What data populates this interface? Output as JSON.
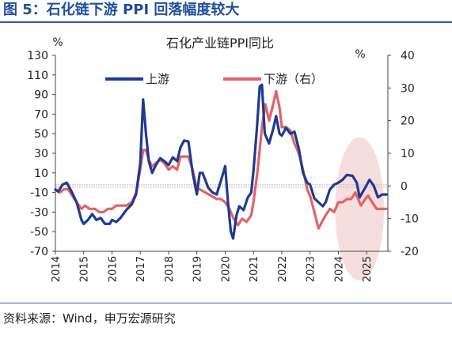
{
  "figure": {
    "title": "图 5：石化链下游 PPI 回落幅度较大",
    "source": "资料来源：Wind，申万宏源研究"
  },
  "colors": {
    "upstream": "#1f3a93",
    "downstream": "#e06468",
    "highlight": "#f7dede",
    "zero_line": "#bdbdbd"
  },
  "chart_data": {
    "type": "line",
    "title": "石化产业链PPI同比",
    "left_unit": "%",
    "right_unit": "%",
    "y_left": {
      "min": -70,
      "max": 130,
      "ticks": [
        130,
        110,
        90,
        70,
        50,
        30,
        10,
        -10,
        -30,
        -50,
        -70
      ]
    },
    "y_right": {
      "min": -20,
      "max": 40,
      "ticks": [
        40,
        30,
        20,
        10,
        0,
        -10,
        -20
      ]
    },
    "x_ticks": [
      "2014",
      "2015",
      "2016",
      "2017",
      "2018",
      "2019",
      "2020",
      "2021",
      "2022",
      "2023",
      "2024",
      "2025"
    ],
    "x_range": [
      2014.0,
      2025.75
    ],
    "highlight_period": [
      2024.0,
      2025.5
    ],
    "series": [
      {
        "name": "上游",
        "axis": "left",
        "points": [
          [
            2014.0,
            -7
          ],
          [
            2014.1,
            -9
          ],
          [
            2014.25,
            -2
          ],
          [
            2014.4,
            0
          ],
          [
            2014.55,
            -8
          ],
          [
            2014.75,
            -20
          ],
          [
            2014.92,
            -38
          ],
          [
            2015.0,
            -42
          ],
          [
            2015.15,
            -38
          ],
          [
            2015.3,
            -32
          ],
          [
            2015.45,
            -38
          ],
          [
            2015.6,
            -36
          ],
          [
            2015.75,
            -42
          ],
          [
            2015.92,
            -42
          ],
          [
            2016.0,
            -38
          ],
          [
            2016.15,
            -40
          ],
          [
            2016.3,
            -36
          ],
          [
            2016.5,
            -28
          ],
          [
            2016.7,
            -22
          ],
          [
            2016.85,
            -12
          ],
          [
            2017.0,
            20
          ],
          [
            2017.1,
            85
          ],
          [
            2017.2,
            50
          ],
          [
            2017.3,
            22
          ],
          [
            2017.42,
            10
          ],
          [
            2017.55,
            18
          ],
          [
            2017.7,
            25
          ],
          [
            2017.85,
            22
          ],
          [
            2018.0,
            18
          ],
          [
            2018.15,
            26
          ],
          [
            2018.3,
            22
          ],
          [
            2018.42,
            36
          ],
          [
            2018.55,
            43
          ],
          [
            2018.7,
            42
          ],
          [
            2018.85,
            10
          ],
          [
            2019.0,
            -12
          ],
          [
            2019.1,
            10
          ],
          [
            2019.2,
            10
          ],
          [
            2019.4,
            -5
          ],
          [
            2019.55,
            -10
          ],
          [
            2019.7,
            -12
          ],
          [
            2019.85,
            2
          ],
          [
            2020.0,
            17
          ],
          [
            2020.1,
            -20
          ],
          [
            2020.2,
            -50
          ],
          [
            2020.28,
            -57
          ],
          [
            2020.4,
            -33
          ],
          [
            2020.5,
            -24
          ],
          [
            2020.65,
            -28
          ],
          [
            2020.8,
            -15
          ],
          [
            2020.92,
            -10
          ],
          [
            2021.0,
            12
          ],
          [
            2021.12,
            55
          ],
          [
            2021.22,
            98
          ],
          [
            2021.3,
            100
          ],
          [
            2021.4,
            50
          ],
          [
            2021.55,
            40
          ],
          [
            2021.7,
            55
          ],
          [
            2021.8,
            68
          ],
          [
            2021.92,
            50
          ],
          [
            2022.0,
            48
          ],
          [
            2022.15,
            56
          ],
          [
            2022.3,
            50
          ],
          [
            2022.45,
            52
          ],
          [
            2022.6,
            35
          ],
          [
            2022.75,
            10
          ],
          [
            2022.9,
            0
          ],
          [
            2023.0,
            -2
          ],
          [
            2023.15,
            -16
          ],
          [
            2023.3,
            -20
          ],
          [
            2023.45,
            -24
          ],
          [
            2023.55,
            -20
          ],
          [
            2023.7,
            -7
          ],
          [
            2023.85,
            -2
          ],
          [
            2024.0,
            0
          ],
          [
            2024.15,
            3
          ],
          [
            2024.3,
            8
          ],
          [
            2024.5,
            7
          ],
          [
            2024.65,
            0
          ],
          [
            2024.75,
            -15
          ],
          [
            2024.85,
            -10
          ],
          [
            2024.95,
            -5
          ],
          [
            2025.1,
            3
          ],
          [
            2025.25,
            -3
          ],
          [
            2025.4,
            -15
          ],
          [
            2025.55,
            -12
          ],
          [
            2025.7,
            -12
          ]
        ]
      },
      {
        "name": "下游（右）",
        "axis": "right",
        "points": [
          [
            2014.0,
            -1
          ],
          [
            2014.15,
            -2
          ],
          [
            2014.3,
            -1
          ],
          [
            2014.45,
            -1
          ],
          [
            2014.6,
            -3
          ],
          [
            2014.75,
            -5
          ],
          [
            2014.92,
            -7
          ],
          [
            2015.05,
            -6
          ],
          [
            2015.2,
            -7
          ],
          [
            2015.4,
            -7
          ],
          [
            2015.55,
            -8
          ],
          [
            2015.7,
            -8
          ],
          [
            2015.85,
            -7
          ],
          [
            2016.0,
            -7
          ],
          [
            2016.15,
            -6
          ],
          [
            2016.3,
            -6
          ],
          [
            2016.5,
            -6
          ],
          [
            2016.7,
            -5
          ],
          [
            2016.85,
            -2
          ],
          [
            2017.0,
            5
          ],
          [
            2017.1,
            11
          ],
          [
            2017.2,
            11
          ],
          [
            2017.3,
            8
          ],
          [
            2017.42,
            6
          ],
          [
            2017.55,
            7
          ],
          [
            2017.7,
            8
          ],
          [
            2017.85,
            7
          ],
          [
            2018.0,
            5
          ],
          [
            2018.15,
            6
          ],
          [
            2018.3,
            5
          ],
          [
            2018.42,
            9
          ],
          [
            2018.55,
            9
          ],
          [
            2018.7,
            9
          ],
          [
            2018.85,
            5
          ],
          [
            2019.0,
            -1
          ],
          [
            2019.1,
            -1
          ],
          [
            2019.3,
            -2
          ],
          [
            2019.5,
            -3
          ],
          [
            2019.7,
            -4
          ],
          [
            2019.85,
            -4
          ],
          [
            2020.0,
            -5
          ],
          [
            2020.15,
            -7
          ],
          [
            2020.3,
            -10
          ],
          [
            2020.45,
            -12
          ],
          [
            2020.6,
            -10
          ],
          [
            2020.75,
            -11
          ],
          [
            2020.92,
            -9
          ],
          [
            2021.0,
            -5
          ],
          [
            2021.15,
            5
          ],
          [
            2021.3,
            18
          ],
          [
            2021.42,
            25
          ],
          [
            2021.55,
            20
          ],
          [
            2021.7,
            25
          ],
          [
            2021.8,
            29
          ],
          [
            2021.92,
            24
          ],
          [
            2022.0,
            18
          ],
          [
            2022.15,
            18
          ],
          [
            2022.3,
            17
          ],
          [
            2022.45,
            13
          ],
          [
            2022.6,
            10
          ],
          [
            2022.75,
            5
          ],
          [
            2022.9,
            -1
          ],
          [
            2023.0,
            -3
          ],
          [
            2023.15,
            -8
          ],
          [
            2023.3,
            -13
          ],
          [
            2023.42,
            -11
          ],
          [
            2023.55,
            -9
          ],
          [
            2023.7,
            -7
          ],
          [
            2023.85,
            -8
          ],
          [
            2024.0,
            -5
          ],
          [
            2024.15,
            -5
          ],
          [
            2024.3,
            -4
          ],
          [
            2024.45,
            -4
          ],
          [
            2024.6,
            -2
          ],
          [
            2024.7,
            -4
          ],
          [
            2024.8,
            -6
          ],
          [
            2024.95,
            -4
          ],
          [
            2025.05,
            -3
          ],
          [
            2025.2,
            -5
          ],
          [
            2025.35,
            -7
          ],
          [
            2025.5,
            -7
          ],
          [
            2025.7,
            -7
          ]
        ]
      }
    ]
  }
}
